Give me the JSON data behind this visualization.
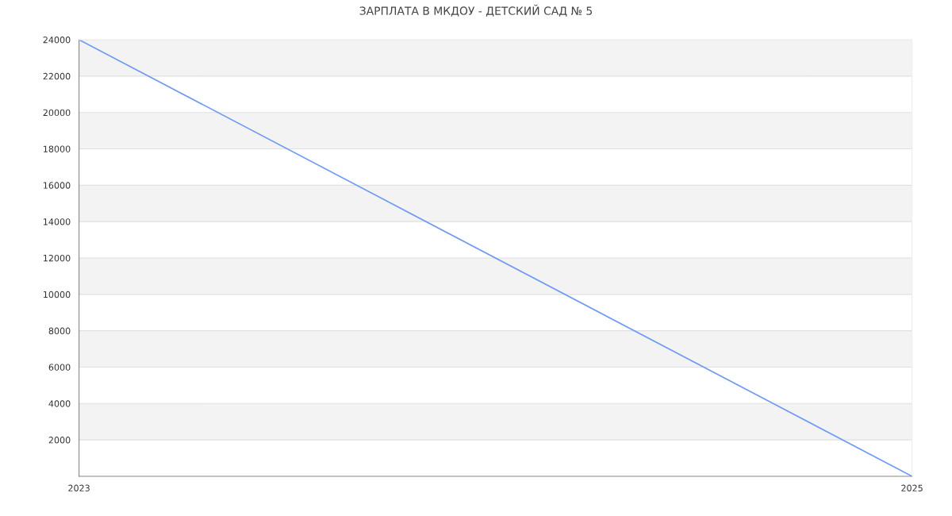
{
  "chart_data": {
    "type": "line",
    "title": "ЗАРПЛАТА В МКДОУ - ДЕТСКИЙ САД № 5",
    "x": [
      2023,
      2025
    ],
    "series": [
      {
        "color": "#6d9bf2",
        "values": [
          24000,
          0
        ]
      }
    ],
    "xlim": [
      2023,
      2025
    ],
    "xticks": [
      2023,
      2025
    ],
    "ylim": [
      0,
      24000
    ],
    "yticks": [
      {
        "value": 0,
        "label": null
      },
      2000,
      4000,
      6000,
      8000,
      10000,
      12000,
      14000,
      16000,
      18000,
      20000,
      22000,
      24000
    ],
    "grid": "y",
    "marker": "none",
    "line_style": "solid",
    "legend": false
  }
}
